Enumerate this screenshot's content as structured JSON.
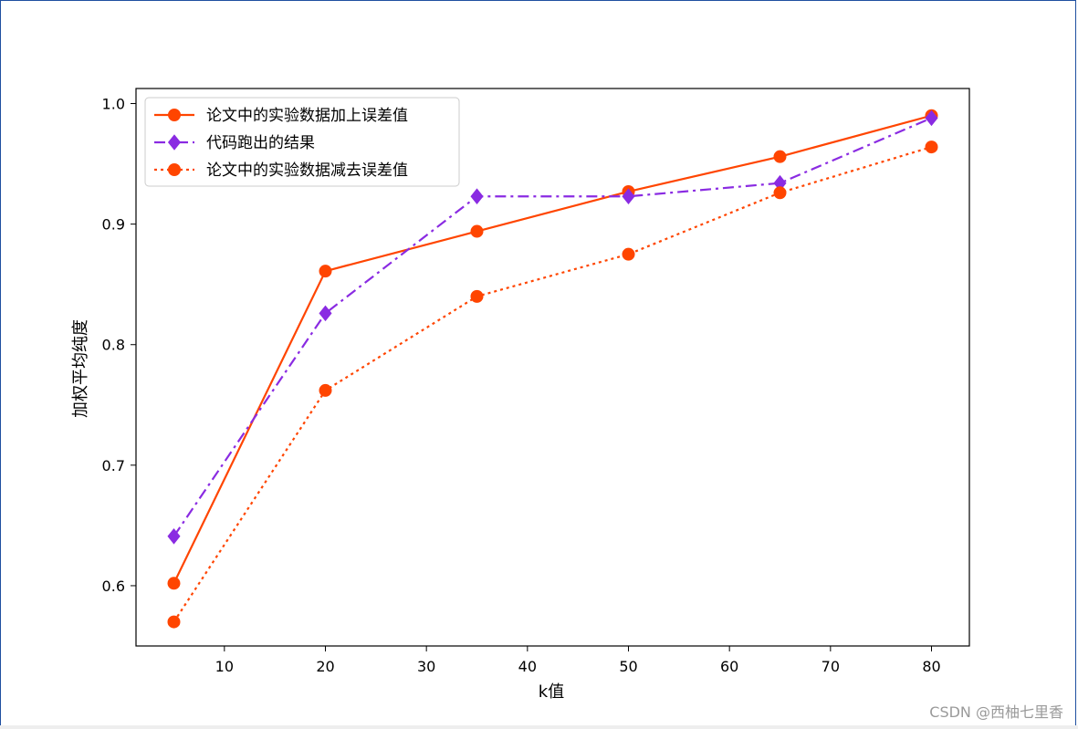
{
  "watermark": "CSDN @西柚七里香",
  "chart_data": {
    "type": "line",
    "title": "",
    "xlabel": "k值",
    "ylabel": "加权平均纯度",
    "x": [
      5,
      20,
      35,
      50,
      65,
      80
    ],
    "xlim": [
      1.25,
      83.75
    ],
    "ylim": [
      0.55,
      1.0125
    ],
    "xticks": [
      10,
      20,
      30,
      40,
      50,
      60,
      70,
      80
    ],
    "yticks": [
      0.6,
      0.7,
      0.8,
      0.9,
      1.0
    ],
    "ytick_labels": [
      "0.6",
      "0.7",
      "0.8",
      "0.9",
      "1.0"
    ],
    "grid": false,
    "legend_position": "upper-left",
    "series": [
      {
        "name": "论文中的实验数据加上误差值",
        "values": [
          0.602,
          0.861,
          0.894,
          0.927,
          0.956,
          0.99
        ],
        "color": "#ff4500",
        "linestyle": "solid",
        "marker": "circle"
      },
      {
        "name": "代码跑出的结果",
        "values": [
          0.641,
          0.826,
          0.923,
          0.923,
          0.934,
          0.988
        ],
        "color": "#8a2be2",
        "linestyle": "dashdot",
        "marker": "diamond"
      },
      {
        "name": "论文中的实验数据减去误差值",
        "values": [
          0.57,
          0.762,
          0.84,
          0.875,
          0.926,
          0.964
        ],
        "color": "#ff4500",
        "linestyle": "dotted",
        "marker": "circle"
      }
    ]
  }
}
